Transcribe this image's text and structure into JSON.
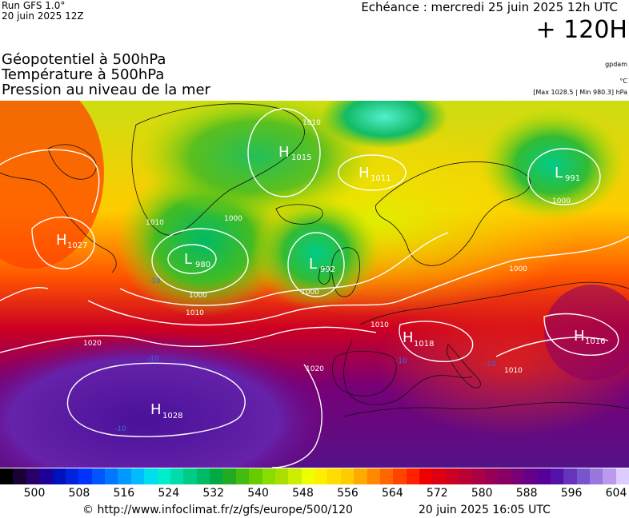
{
  "header": {
    "run_model": "Run GFS 1.0°",
    "run_date": "20 juin 2025 12Z",
    "forecast_time": "Echéance : mercredi 25 juin 2025 12h UTC",
    "forecast_offset": "+ 120H"
  },
  "layers": {
    "geopotential": "Géopotentiel à 500hPa",
    "temperature": "Température à 500hPa",
    "pressure": "Pression au niveau de la mer"
  },
  "units": {
    "geopotential_unit": "gpdam",
    "temperature_unit": "°C",
    "pressure_range": "[Max 1028.5 | Min 980.3] hPa"
  },
  "pressure_centres": [
    {
      "type": "H",
      "value": "1015"
    },
    {
      "type": "H",
      "value": "1011"
    },
    {
      "type": "L",
      "value": "991"
    },
    {
      "type": "H",
      "value": "1027"
    },
    {
      "type": "L",
      "value": "980"
    },
    {
      "type": "L",
      "value": "992"
    },
    {
      "type": "H",
      "value": "1018"
    },
    {
      "type": "H",
      "value": "1016"
    },
    {
      "type": "H",
      "value": "1028"
    }
  ],
  "isobar_labels": [
    "1010",
    "1010",
    "1000",
    "1000",
    "1000",
    "1000",
    "1000",
    "1010",
    "1010",
    "1020",
    "1020",
    "1010"
  ],
  "temperature_labels": [
    "-10",
    "-10",
    "-10",
    "-10",
    "-10"
  ],
  "color_scale": {
    "labels": [
      "500",
      "508",
      "516",
      "524",
      "532",
      "540",
      "548",
      "556",
      "564",
      "572",
      "580",
      "588",
      "596",
      "604"
    ],
    "colors": [
      "#000000",
      "#1a0033",
      "#2a0066",
      "#1e0099",
      "#0011bb",
      "#0022dd",
      "#0033ff",
      "#0055ff",
      "#0077ff",
      "#0099ff",
      "#00bbff",
      "#00ddee",
      "#00eecc",
      "#00ddaa",
      "#00cc88",
      "#00bb66",
      "#00aa44",
      "#22aa22",
      "#44bb11",
      "#66cc00",
      "#88dd00",
      "#aadd00",
      "#ccee00",
      "#eeff00",
      "#ffee00",
      "#ffdd00",
      "#ffcc00",
      "#ffaa00",
      "#ff8800",
      "#ff6600",
      "#ff4400",
      "#ff2200",
      "#ee0000",
      "#dd0011",
      "#cc0022",
      "#bb0033",
      "#aa0044",
      "#990055",
      "#880066",
      "#770077",
      "#660088",
      "#550099",
      "#5511aa",
      "#6633bb",
      "#7755cc",
      "#9977dd",
      "#bb99ee",
      "#ddccff"
    ]
  },
  "footer": {
    "copyright": "© http://www.infoclimat.fr/z/gfs/europe/500/120",
    "generated": "20 juin 2025 16:05 UTC"
  }
}
